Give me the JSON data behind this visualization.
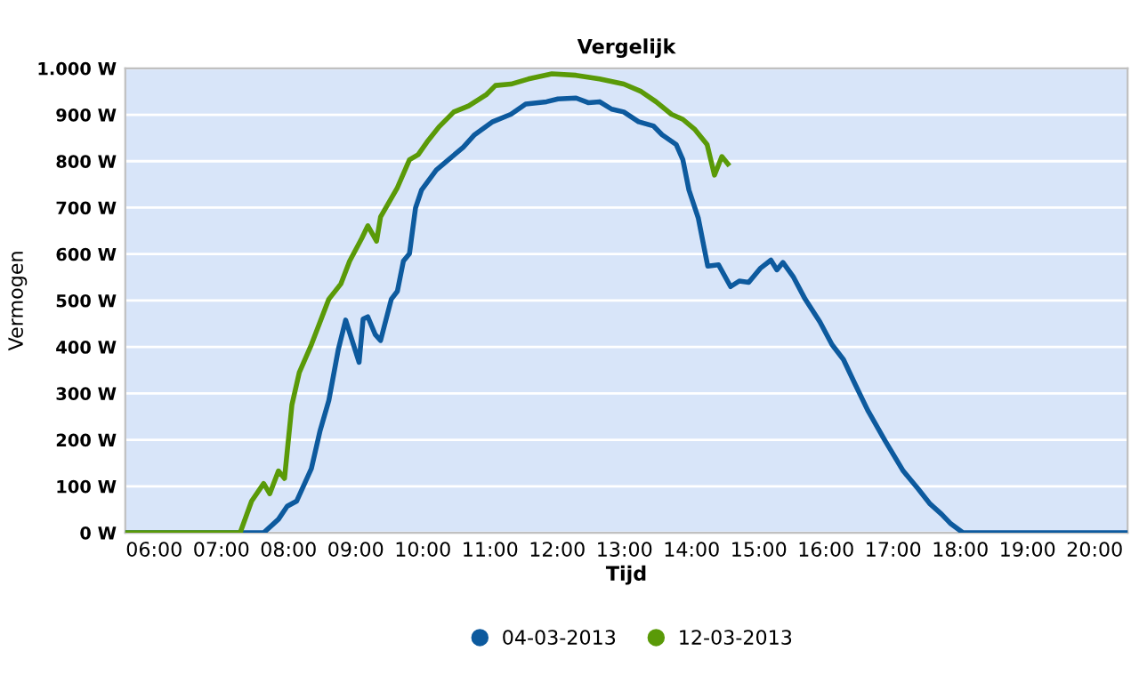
{
  "chart_data": {
    "type": "line",
    "title": "Vergelijk",
    "xlabel": "Tijd",
    "ylabel": "Vermogen",
    "xlim": [
      5.57,
      20.49
    ],
    "ylim": [
      0,
      1000
    ],
    "xticks": [
      {
        "value": 6,
        "label": "06:00"
      },
      {
        "value": 7,
        "label": "07:00"
      },
      {
        "value": 8,
        "label": "08:00"
      },
      {
        "value": 9,
        "label": "09:00"
      },
      {
        "value": 10,
        "label": "10:00"
      },
      {
        "value": 11,
        "label": "11:00"
      },
      {
        "value": 12,
        "label": "12:00"
      },
      {
        "value": 13,
        "label": "13:00"
      },
      {
        "value": 14,
        "label": "14:00"
      },
      {
        "value": 15,
        "label": "15:00"
      },
      {
        "value": 16,
        "label": "16:00"
      },
      {
        "value": 17,
        "label": "17:00"
      },
      {
        "value": 18,
        "label": "18:00"
      },
      {
        "value": 19,
        "label": "19:00"
      },
      {
        "value": 20,
        "label": "20:00"
      }
    ],
    "yticks": [
      {
        "value": 0,
        "label": "0 W"
      },
      {
        "value": 100,
        "label": "100 W"
      },
      {
        "value": 200,
        "label": "200 W"
      },
      {
        "value": 300,
        "label": "300 W"
      },
      {
        "value": 400,
        "label": "400 W"
      },
      {
        "value": 500,
        "label": "500 W"
      },
      {
        "value": 600,
        "label": "600 W"
      },
      {
        "value": 700,
        "label": "700 W"
      },
      {
        "value": 800,
        "label": "800 W"
      },
      {
        "value": 900,
        "label": "900 W"
      },
      {
        "value": 1000,
        "label": "1.000 W"
      }
    ],
    "grid": "y",
    "legend": "bottom",
    "marker": "none",
    "line_style": "solid",
    "series": [
      {
        "name": "04-03-2013",
        "color": "#0d5a9e",
        "x": [
          5.6,
          7.63,
          7.85,
          7.98,
          8.12,
          8.34,
          8.47,
          8.6,
          8.74,
          8.85,
          9.05,
          9.11,
          9.18,
          9.29,
          9.37,
          9.53,
          9.62,
          9.71,
          9.8,
          9.89,
          9.98,
          10.2,
          10.38,
          10.6,
          10.77,
          11.04,
          11.31,
          11.53,
          11.84,
          12.01,
          12.28,
          12.46,
          12.63,
          12.81,
          12.99,
          13.21,
          13.43,
          13.56,
          13.77,
          13.87,
          13.96,
          14.1,
          14.24,
          14.4,
          14.58,
          14.71,
          14.85,
          15.02,
          15.18,
          15.27,
          15.36,
          15.51,
          15.69,
          15.91,
          16.09,
          16.26,
          16.44,
          16.62,
          16.88,
          17.15,
          17.37,
          17.55,
          17.72,
          17.86,
          18.04,
          20.49
        ],
        "values": [
          0,
          0,
          29,
          57,
          68,
          138,
          220,
          285,
          394,
          458,
          367,
          460,
          465,
          427,
          414,
          503,
          520,
          585,
          601,
          699,
          738,
          781,
          803,
          830,
          857,
          885,
          901,
          923,
          928,
          934,
          936,
          926,
          928,
          912,
          906,
          885,
          876,
          857,
          836,
          803,
          738,
          677,
          574,
          577,
          530,
          542,
          539,
          569,
          587,
          566,
          582,
          552,
          503,
          454,
          405,
          373,
          318,
          264,
          198,
          133,
          95,
          62,
          40,
          19,
          0,
          0
        ]
      },
      {
        "name": "12-03-2013",
        "color": "#5a9a08",
        "x": [
          5.6,
          7.28,
          7.45,
          7.63,
          7.72,
          7.85,
          7.94,
          8.05,
          8.16,
          8.34,
          8.6,
          8.78,
          8.91,
          9.09,
          9.18,
          9.31,
          9.37,
          9.62,
          9.8,
          9.93,
          10.06,
          10.24,
          10.46,
          10.68,
          10.95,
          11.08,
          11.31,
          11.57,
          11.92,
          12.28,
          12.63,
          12.99,
          13.25,
          13.47,
          13.7,
          13.87,
          14.05,
          14.23,
          14.34,
          14.45,
          14.54
        ],
        "values": [
          0,
          0,
          68,
          106,
          84,
          133,
          117,
          275,
          345,
          405,
          503,
          536,
          585,
          634,
          661,
          628,
          680,
          743,
          803,
          814,
          841,
          874,
          906,
          919,
          944,
          963,
          966,
          977,
          988,
          985,
          977,
          966,
          950,
          928,
          901,
          890,
          868,
          836,
          770,
          810,
          794
        ]
      }
    ]
  }
}
